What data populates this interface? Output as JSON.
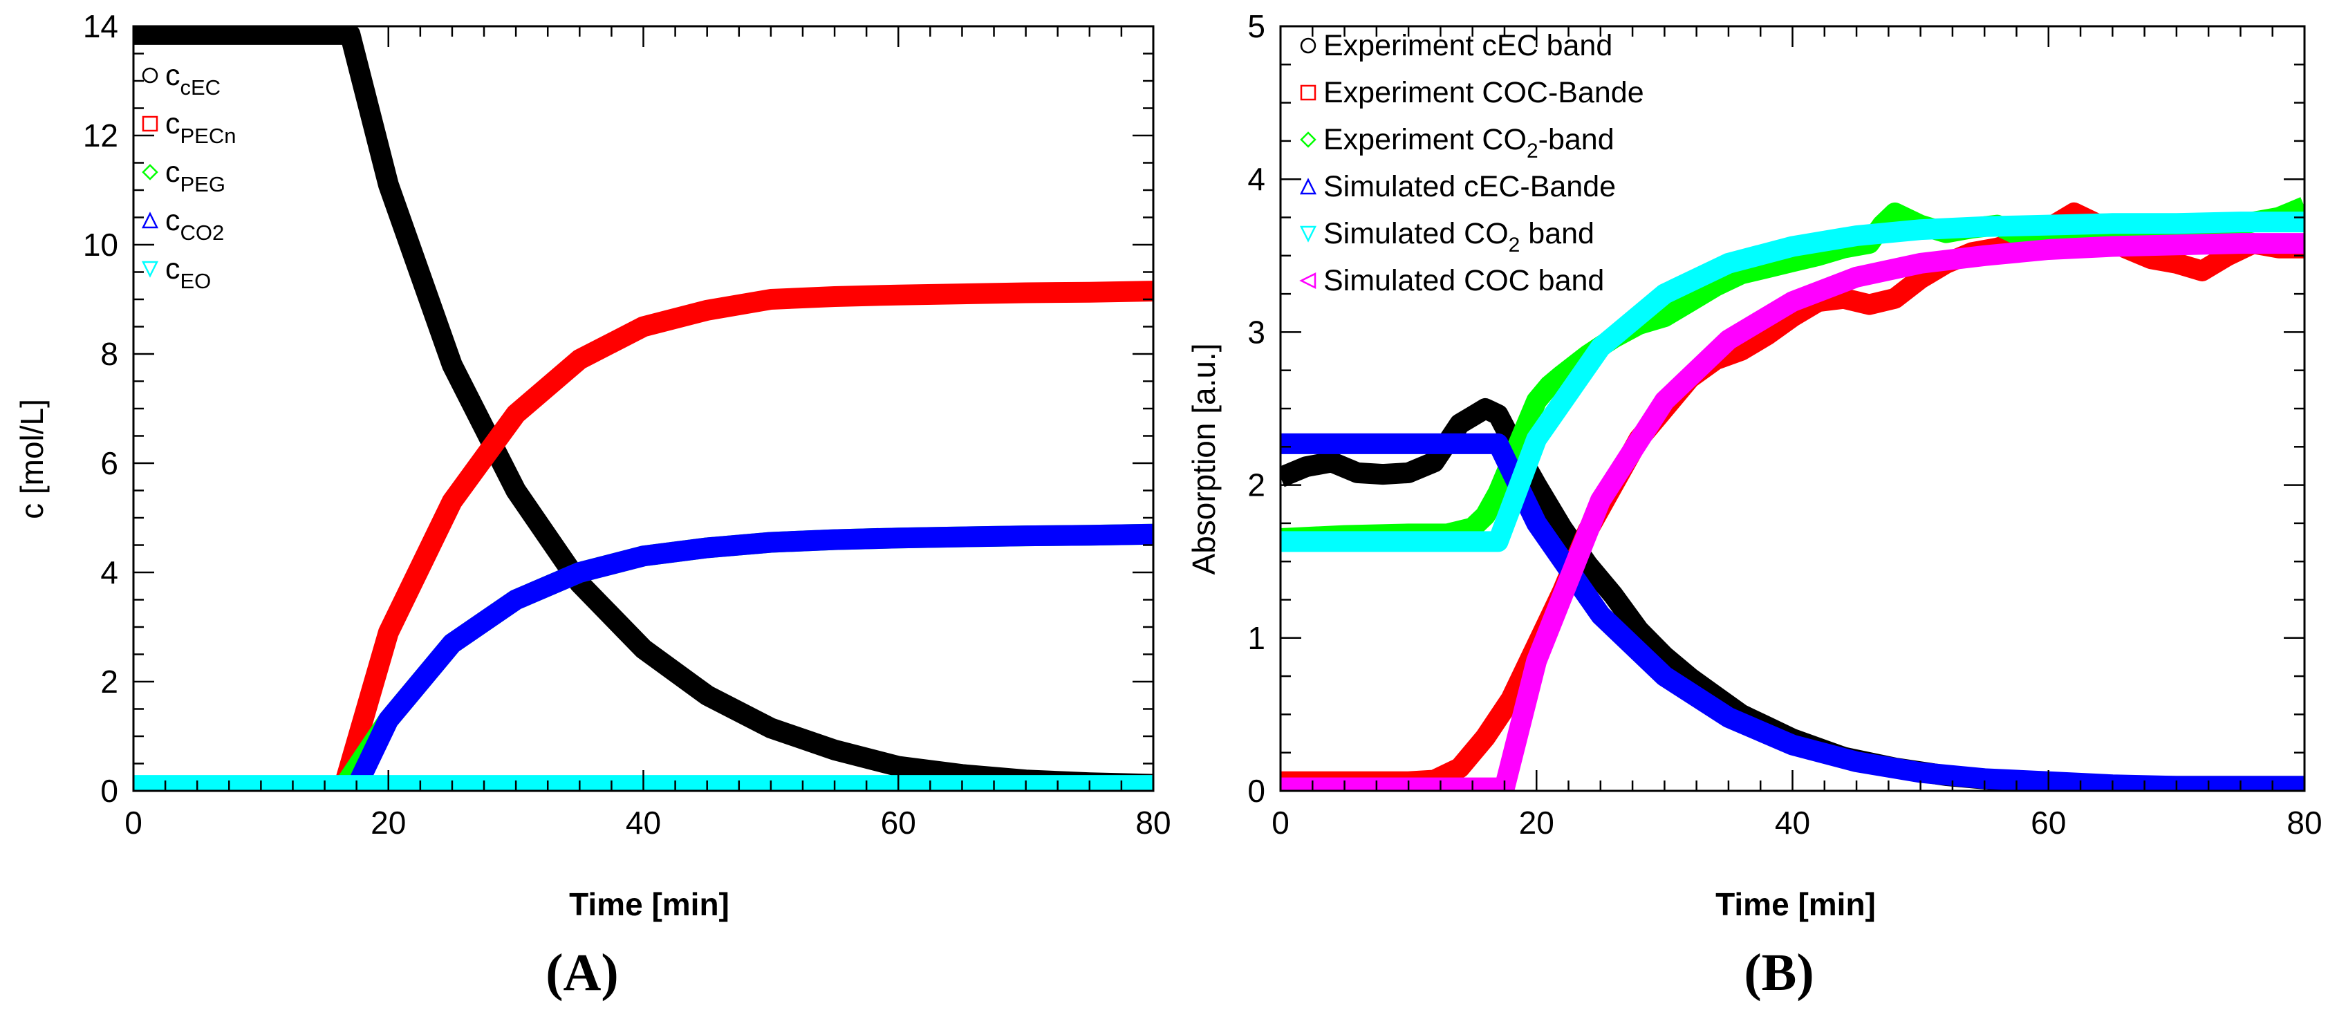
{
  "chart_data": [
    {
      "type": "line",
      "panel_label": "(A)",
      "xlabel": "Time [min]",
      "ylabel": "c [mol/L]",
      "xlim": [
        0,
        80
      ],
      "ylim": [
        0,
        14
      ],
      "xticks": [
        0,
        20,
        40,
        60,
        80
      ],
      "yticks": [
        0,
        2,
        4,
        6,
        8,
        10,
        12,
        14
      ],
      "grid": false,
      "legend_position": "top-left",
      "legend": [
        {
          "base": "c",
          "sub": "cEC",
          "marker": "circle",
          "color": "#000000"
        },
        {
          "base": "c",
          "sub": "PECn",
          "marker": "square",
          "color": "#ff0000"
        },
        {
          "base": "c",
          "sub": "PEG",
          "marker": "diamond",
          "color": "#00ff00"
        },
        {
          "base": "c",
          "sub": "CO2",
          "marker": "triangle-up",
          "color": "#0000ff"
        },
        {
          "base": "c",
          "sub": "EO",
          "marker": "triangle-down",
          "color": "#00ffff"
        }
      ],
      "series": [
        {
          "name": "cEC",
          "color": "#000000",
          "x": [
            0,
            5,
            10,
            15,
            17,
            20,
            25,
            30,
            35,
            40,
            45,
            50,
            55,
            60,
            65,
            70,
            75,
            80
          ],
          "values": [
            13.85,
            13.85,
            13.85,
            13.85,
            13.85,
            11.1,
            7.8,
            5.5,
            3.8,
            2.6,
            1.75,
            1.15,
            0.75,
            0.45,
            0.3,
            0.2,
            0.15,
            0.12
          ]
        },
        {
          "name": "PECn",
          "color": "#ff0000",
          "x": [
            0,
            5,
            10,
            15,
            16.5,
            20,
            25,
            30,
            35,
            40,
            45,
            50,
            55,
            60,
            65,
            70,
            75,
            80
          ],
          "values": [
            0.08,
            0.08,
            0.08,
            0.08,
            0.08,
            2.9,
            5.3,
            6.9,
            7.9,
            8.5,
            8.8,
            9.0,
            9.05,
            9.08,
            9.1,
            9.12,
            9.13,
            9.15
          ]
        },
        {
          "name": "PEG",
          "color": "#00ff00",
          "x": [
            0,
            5,
            10,
            15,
            16.5,
            20,
            25,
            30,
            35,
            40,
            45,
            50,
            55,
            60,
            65,
            70,
            75,
            80
          ],
          "values": [
            0.08,
            0.08,
            0.08,
            0.08,
            0.08,
            1.3,
            2.7,
            3.5,
            4.0,
            4.3,
            4.45,
            4.55,
            4.6,
            4.63,
            4.65,
            4.67,
            4.68,
            4.7
          ]
        },
        {
          "name": "CO2",
          "color": "#0000ff",
          "x": [
            0,
            5,
            10,
            15,
            17.5,
            20,
            25,
            30,
            35,
            40,
            45,
            50,
            55,
            60,
            65,
            70,
            75,
            80
          ],
          "values": [
            0.08,
            0.08,
            0.08,
            0.08,
            0.08,
            1.3,
            2.7,
            3.5,
            4.0,
            4.3,
            4.45,
            4.55,
            4.6,
            4.63,
            4.65,
            4.67,
            4.68,
            4.7
          ]
        },
        {
          "name": "EO",
          "color": "#00ffff",
          "x": [
            0,
            20,
            40,
            60,
            80
          ],
          "values": [
            0.1,
            0.1,
            0.1,
            0.1,
            0.1
          ]
        }
      ]
    },
    {
      "type": "line",
      "panel_label": "(B)",
      "xlabel": "Time [min]",
      "ylabel": "Absorption [a.u.]",
      "xlim": [
        0,
        80
      ],
      "ylim": [
        0,
        5
      ],
      "xticks": [
        0,
        20,
        40,
        60,
        80
      ],
      "yticks": [
        0,
        1,
        2,
        3,
        4,
        5
      ],
      "grid": false,
      "legend_position": "top-left",
      "legend": [
        {
          "parts": [
            "Experiment cEC band"
          ],
          "marker": "circle",
          "color": "#000000"
        },
        {
          "parts": [
            "Experiment COC-Bande"
          ],
          "marker": "square",
          "color": "#ff0000"
        },
        {
          "parts": [
            "Experiment CO",
            "2",
            "-band"
          ],
          "marker": "diamond",
          "color": "#00ff00"
        },
        {
          "parts": [
            "Simulated cEC-Bande"
          ],
          "marker": "triangle-up",
          "color": "#0000ff"
        },
        {
          "parts": [
            "Simulated CO",
            "2",
            " band"
          ],
          "marker": "triangle-down",
          "color": "#00ffff"
        },
        {
          "parts": [
            "Simulated COC band"
          ],
          "marker": "triangle-left",
          "color": "#ff00ff"
        }
      ],
      "series": [
        {
          "name": "Experiment cEC band",
          "color": "#000000",
          "x": [
            0,
            2,
            4,
            6,
            8,
            10,
            12,
            14,
            15,
            16,
            17,
            18,
            19,
            20,
            22,
            24,
            26,
            28,
            30,
            32,
            34,
            36,
            38,
            40,
            44,
            48,
            52,
            56,
            60,
            64,
            68,
            72,
            76,
            80
          ],
          "values": [
            2.05,
            2.12,
            2.15,
            2.08,
            2.07,
            2.08,
            2.15,
            2.4,
            2.45,
            2.5,
            2.46,
            2.3,
            2.15,
            2.0,
            1.72,
            1.48,
            1.28,
            1.05,
            0.88,
            0.74,
            0.62,
            0.5,
            0.42,
            0.34,
            0.22,
            0.15,
            0.1,
            0.07,
            0.05,
            0.04,
            0.03,
            0.03,
            0.03,
            0.03
          ]
        },
        {
          "name": "Experiment COC-Bande",
          "color": "#ff0000",
          "x": [
            0,
            5,
            10,
            12,
            14,
            16,
            18,
            20,
            22,
            24,
            26,
            28,
            30,
            32,
            34,
            36,
            38,
            40,
            42,
            44,
            46,
            48,
            50,
            52,
            54,
            56,
            58,
            60,
            62,
            64,
            66,
            68,
            70,
            72,
            74,
            76,
            78,
            80
          ],
          "values": [
            0.06,
            0.06,
            0.06,
            0.07,
            0.15,
            0.35,
            0.6,
            0.95,
            1.3,
            1.7,
            2.0,
            2.3,
            2.5,
            2.7,
            2.82,
            2.88,
            2.98,
            3.1,
            3.2,
            3.22,
            3.18,
            3.22,
            3.35,
            3.45,
            3.52,
            3.55,
            3.6,
            3.68,
            3.78,
            3.7,
            3.55,
            3.48,
            3.45,
            3.4,
            3.5,
            3.58,
            3.55,
            3.55
          ]
        },
        {
          "name": "Experiment CO2-band",
          "color": "#00ff00",
          "x": [
            0,
            5,
            10,
            13,
            15,
            16,
            17,
            18,
            19,
            20,
            21,
            22,
            24,
            26,
            28,
            30,
            32,
            34,
            36,
            38,
            40,
            42,
            44,
            46,
            47,
            48,
            50,
            52,
            54,
            56,
            58,
            60,
            62,
            64,
            66,
            68,
            70,
            72,
            74,
            76,
            78,
            80
          ],
          "values": [
            1.65,
            1.67,
            1.68,
            1.68,
            1.72,
            1.8,
            1.95,
            2.15,
            2.35,
            2.55,
            2.65,
            2.72,
            2.85,
            2.96,
            3.05,
            3.1,
            3.2,
            3.3,
            3.38,
            3.42,
            3.46,
            3.5,
            3.55,
            3.58,
            3.7,
            3.78,
            3.7,
            3.65,
            3.68,
            3.7,
            3.62,
            3.6,
            3.66,
            3.58,
            3.6,
            3.62,
            3.65,
            3.7,
            3.68,
            3.72,
            3.75,
            3.82
          ]
        },
        {
          "name": "Simulated cEC-Bande",
          "color": "#0000ff",
          "x": [
            0,
            5,
            10,
            15,
            17,
            20,
            25,
            30,
            35,
            40,
            45,
            50,
            55,
            60,
            65,
            70,
            75,
            80
          ],
          "values": [
            2.27,
            2.27,
            2.27,
            2.27,
            2.27,
            1.75,
            1.15,
            0.75,
            0.48,
            0.3,
            0.19,
            0.12,
            0.08,
            0.06,
            0.04,
            0.03,
            0.03,
            0.03
          ]
        },
        {
          "name": "Simulated CO2 band",
          "color": "#00ffff",
          "x": [
            0,
            5,
            10,
            15,
            17,
            20,
            25,
            30,
            35,
            40,
            45,
            50,
            55,
            60,
            65,
            70,
            75,
            80
          ],
          "values": [
            1.63,
            1.63,
            1.63,
            1.63,
            1.63,
            2.3,
            2.9,
            3.25,
            3.45,
            3.56,
            3.63,
            3.67,
            3.69,
            3.7,
            3.71,
            3.71,
            3.72,
            3.72
          ]
        },
        {
          "name": "Simulated COC band",
          "color": "#ff00ff",
          "x": [
            0,
            5,
            10,
            15,
            17.5,
            20,
            25,
            30,
            35,
            40,
            45,
            50,
            55,
            60,
            65,
            70,
            75,
            80
          ],
          "values": [
            0.02,
            0.02,
            0.02,
            0.02,
            0.02,
            0.85,
            1.9,
            2.55,
            2.95,
            3.2,
            3.36,
            3.45,
            3.5,
            3.54,
            3.56,
            3.57,
            3.58,
            3.58
          ]
        }
      ]
    }
  ]
}
